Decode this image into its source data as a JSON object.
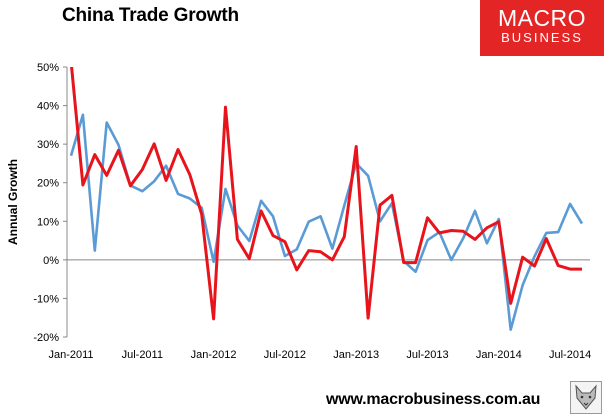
{
  "title": "China Trade Growth",
  "logo": {
    "line1": "MACRO",
    "line2": "BUSINESS",
    "color": "#e42525"
  },
  "footer": {
    "url": "www.macrobusiness.com.au"
  },
  "chart_data": {
    "type": "line",
    "ylabel": "Annual Growth",
    "ylim": [
      -20,
      50
    ],
    "yticks": [
      "50%",
      "40%",
      "30%",
      "20%",
      "10%",
      "0%",
      "-10%",
      "-20%"
    ],
    "xticks": [
      "Jan-2011",
      "Jul-2011",
      "Jan-2012",
      "Jul-2012",
      "Jan-2013",
      "Jul-2013",
      "Jan-2014",
      "Jul-2014"
    ],
    "x": [
      "2011-01",
      "2011-02",
      "2011-03",
      "2011-04",
      "2011-05",
      "2011-06",
      "2011-07",
      "2011-08",
      "2011-09",
      "2011-10",
      "2011-11",
      "2011-12",
      "2012-01",
      "2012-02",
      "2012-03",
      "2012-04",
      "2012-05",
      "2012-06",
      "2012-07",
      "2012-08",
      "2012-09",
      "2012-10",
      "2012-11",
      "2012-12",
      "2013-01",
      "2013-02",
      "2013-03",
      "2013-04",
      "2013-05",
      "2013-06",
      "2013-07",
      "2013-08",
      "2013-09",
      "2013-10",
      "2013-11",
      "2013-12",
      "2014-01",
      "2014-02",
      "2014-03",
      "2014-04",
      "2014-05",
      "2014-06",
      "2014-07",
      "2014-08"
    ],
    "grid": false,
    "series": [
      {
        "color": "#5b9bd5",
        "values": [
          27,
          37.6,
          2.4,
          35.6,
          29.8,
          19.3,
          17.8,
          20.4,
          24.4,
          17.1,
          15.9,
          13.5,
          -0.5,
          18.4,
          8.9,
          4.9,
          15.3,
          11.3,
          1.0,
          2.7,
          9.9,
          11.3,
          2.9,
          14.1,
          25.0,
          21.8,
          10.0,
          14.7,
          -0.3,
          -3.1,
          5.1,
          7.2,
          0,
          5.6,
          12.7,
          4.3,
          10.6,
          -18.1,
          -6.6,
          0.9,
          7.0,
          7.2,
          14.5,
          9.4
        ]
      },
      {
        "color": "#e8141c",
        "values": [
          51.6,
          19.4,
          27.3,
          21.9,
          28.4,
          19.2,
          23.4,
          30.1,
          20.6,
          28.6,
          22.1,
          11.8,
          -15.3,
          39.6,
          5.3,
          0.3,
          12.7,
          6.3,
          4.7,
          -2.6,
          2.4,
          2.1,
          0.0,
          6.0,
          29.4,
          -15.1,
          14.2,
          16.7,
          -0.7,
          -0.7,
          10.9,
          7.0,
          7.6,
          7.4,
          5.3,
          8.3,
          9.9,
          -11.3,
          0.7,
          -1.6,
          5.5,
          -1.5,
          -2.4,
          -2.4
        ]
      }
    ]
  }
}
